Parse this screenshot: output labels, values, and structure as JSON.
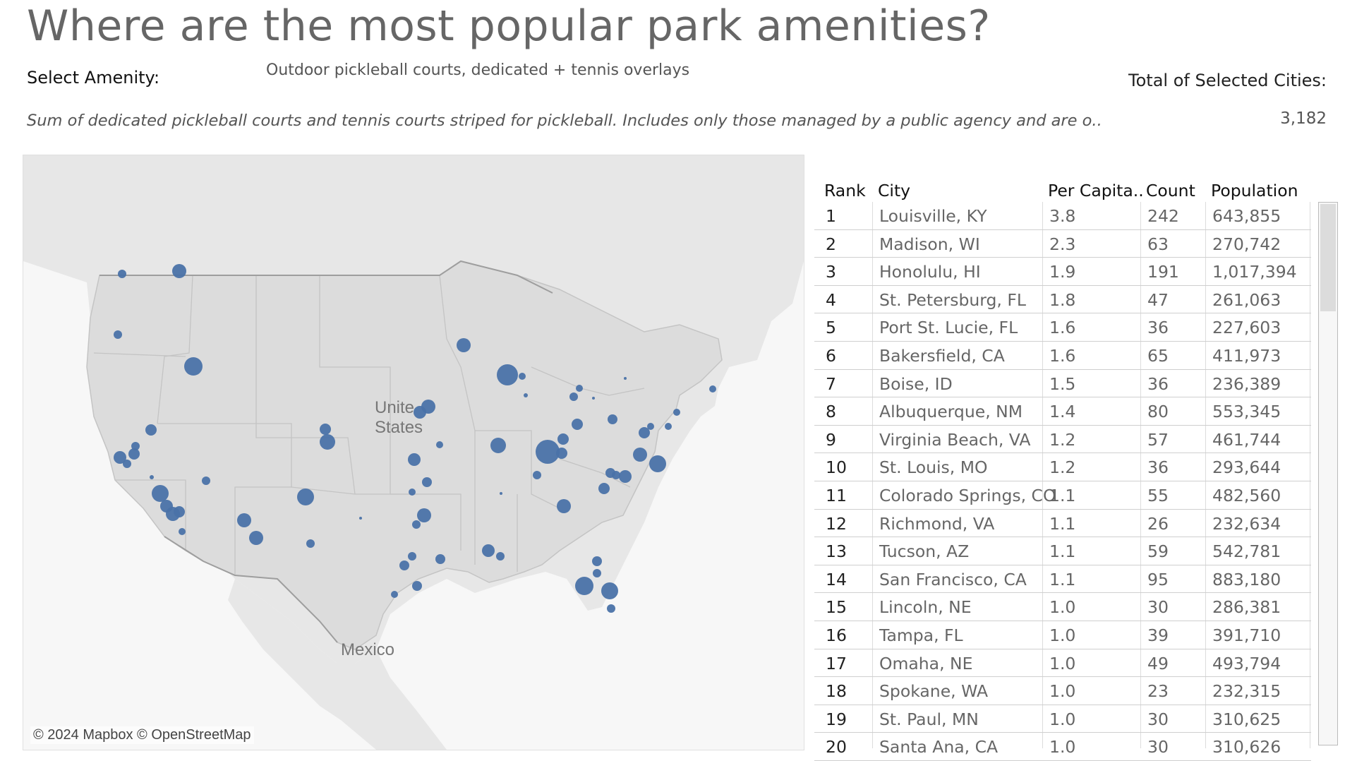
{
  "title": "Where are the most popular park amenities?",
  "amenity": {
    "label": "Select Amenity:",
    "value": "Outdoor pickleball courts, dedicated + tennis overlays"
  },
  "total": {
    "label": "Total of Selected Cities:",
    "value": "3,182"
  },
  "description": "Sum of dedicated pickleball courts and tennis courts striped for pickleball. Includes only those managed by a public agency and are o..",
  "map": {
    "labels": {
      "country_us_line1": "Unite",
      "country_us_line2": "States",
      "country_mx": "Mexico"
    },
    "attribution": "© 2024 Mapbox © OpenStreetMap",
    "colors": {
      "water": "#f7f7f7",
      "land": "#e7e7e7",
      "us": "#dcdcdc",
      "border": "#bdbdbd",
      "marker": "#4a72a8"
    }
  },
  "table": {
    "headers": {
      "rank": "Rank",
      "city": "City",
      "per_capita": "Per Capita..",
      "count": "Count",
      "population": "Population"
    },
    "rows": [
      {
        "rank": "1",
        "city": "Louisville, KY",
        "per_capita": "3.8",
        "count": "242",
        "population": "643,855"
      },
      {
        "rank": "2",
        "city": "Madison, WI",
        "per_capita": "2.3",
        "count": "63",
        "population": "270,742"
      },
      {
        "rank": "3",
        "city": "Honolulu, HI",
        "per_capita": "1.9",
        "count": "191",
        "population": "1,017,394"
      },
      {
        "rank": "4",
        "city": "St. Petersburg, FL",
        "per_capita": "1.8",
        "count": "47",
        "population": "261,063"
      },
      {
        "rank": "5",
        "city": "Port St. Lucie, FL",
        "per_capita": "1.6",
        "count": "36",
        "population": "227,603"
      },
      {
        "rank": "6",
        "city": "Bakersfield, CA",
        "per_capita": "1.6",
        "count": "65",
        "population": "411,973"
      },
      {
        "rank": "7",
        "city": "Boise, ID",
        "per_capita": "1.5",
        "count": "36",
        "population": "236,389"
      },
      {
        "rank": "8",
        "city": "Albuquerque, NM",
        "per_capita": "1.4",
        "count": "80",
        "population": "553,345"
      },
      {
        "rank": "9",
        "city": "Virginia Beach, VA",
        "per_capita": "1.2",
        "count": "57",
        "population": "461,744"
      },
      {
        "rank": "10",
        "city": "St. Louis, MO",
        "per_capita": "1.2",
        "count": "36",
        "population": "293,644"
      },
      {
        "rank": "11",
        "city": "Colorado Springs, CO",
        "per_capita": "1.1",
        "count": "55",
        "population": "482,560"
      },
      {
        "rank": "12",
        "city": "Richmond, VA",
        "per_capita": "1.1",
        "count": "26",
        "population": "232,634"
      },
      {
        "rank": "13",
        "city": "Tucson, AZ",
        "per_capita": "1.1",
        "count": "59",
        "population": "542,781"
      },
      {
        "rank": "14",
        "city": "San Francisco, CA",
        "per_capita": "1.1",
        "count": "95",
        "population": "883,180"
      },
      {
        "rank": "15",
        "city": "Lincoln, NE",
        "per_capita": "1.0",
        "count": "30",
        "population": "286,381"
      },
      {
        "rank": "16",
        "city": "Tampa, FL",
        "per_capita": "1.0",
        "count": "39",
        "population": "391,710"
      },
      {
        "rank": "17",
        "city": "Omaha, NE",
        "per_capita": "1.0",
        "count": "49",
        "population": "493,794"
      },
      {
        "rank": "18",
        "city": "Spokane, WA",
        "per_capita": "1.0",
        "count": "23",
        "population": "232,315"
      },
      {
        "rank": "19",
        "city": "St. Paul, MN",
        "per_capita": "1.0",
        "count": "30",
        "population": "310,625"
      },
      {
        "rank": "20",
        "city": "Santa Ana, CA",
        "per_capita": "1.0",
        "count": "30",
        "population": "310,626"
      }
    ]
  }
}
